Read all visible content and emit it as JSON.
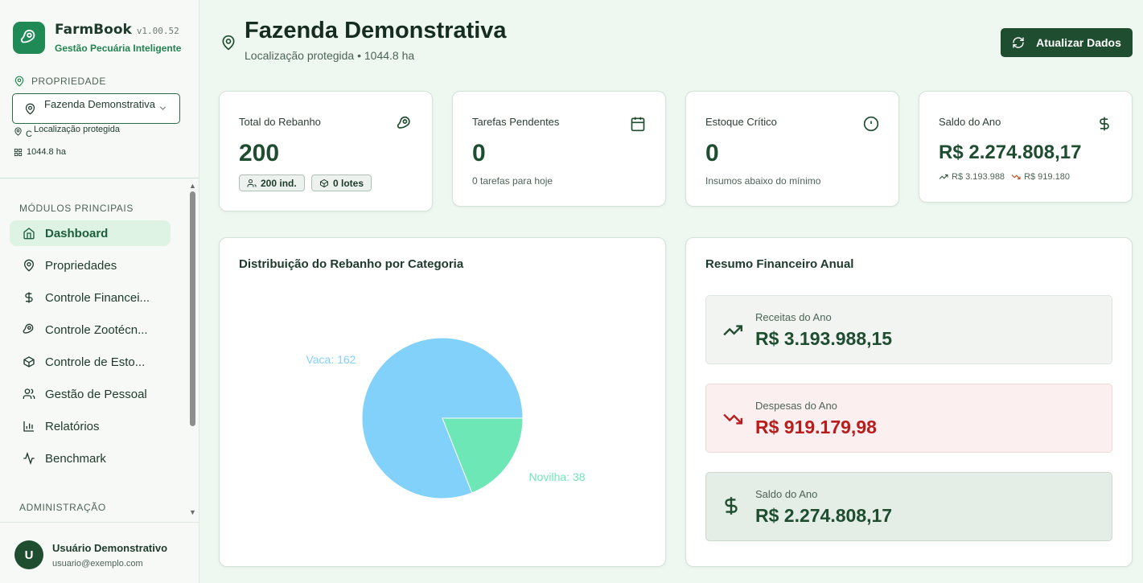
{
  "brand": {
    "name": "FarmBook",
    "version": "v1.00.52",
    "subtitle": "Gestão Pecuária Inteligente"
  },
  "property": {
    "section_label": "PROPRIEDADE",
    "selected": "Fazenda Demonstrativa",
    "location_prefix": "C",
    "location": "Localização protegida",
    "area": "1044.8 ha"
  },
  "nav": {
    "main_label": "MÓDULOS PRINCIPAIS",
    "items": [
      {
        "label": "Dashboard",
        "icon": "home-icon",
        "active": true
      },
      {
        "label": "Propriedades",
        "icon": "map-pin-icon"
      },
      {
        "label": "Controle Financei...",
        "icon": "dollar-icon"
      },
      {
        "label": "Controle Zootécn...",
        "icon": "beef-icon"
      },
      {
        "label": "Controle de Esto...",
        "icon": "package-icon"
      },
      {
        "label": "Gestão de Pessoal",
        "icon": "users-icon"
      },
      {
        "label": "Relatórios",
        "icon": "bar-chart-icon"
      },
      {
        "label": "Benchmark",
        "icon": "activity-icon"
      }
    ],
    "admin_label": "ADMINISTRAÇÃO"
  },
  "user": {
    "initial": "U",
    "name": "Usuário Demonstrativo",
    "email": "usuario@exemplo.com"
  },
  "header": {
    "title": "Fazenda Demonstrativa",
    "subtitle": "Localização protegida • 1044.8 ha",
    "refresh_label": "Atualizar Dados"
  },
  "cards": {
    "herd": {
      "title": "Total do Rebanho",
      "value": "200",
      "individuals": "200 ind.",
      "lots": "0 lotes"
    },
    "tasks": {
      "title": "Tarefas Pendentes",
      "value": "0",
      "note": "0 tarefas para hoje"
    },
    "stock": {
      "title": "Estoque Crítico",
      "value": "0",
      "note": "Insumos abaixo do mínimo"
    },
    "balance": {
      "title": "Saldo do Ano",
      "value": "R$ 2.274.808,17",
      "income": "R$ 3.193.988",
      "expense": "R$ 919.180"
    }
  },
  "chart_panel": {
    "title": "Distribuição do Rebanho por Categoria"
  },
  "chart_data": {
    "type": "pie",
    "title": "Distribuição do Rebanho por Categoria",
    "slices": [
      {
        "label": "Vaca: 162",
        "value": 162,
        "color": "#82d1fb"
      },
      {
        "label": "Novilha: 38",
        "value": 38,
        "color": "#6ee7b7"
      }
    ]
  },
  "finance": {
    "title": "Resumo Financeiro Anual",
    "income_label": "Receitas do Ano",
    "income_value": "R$ 3.193.988,15",
    "expense_label": "Despesas do Ano",
    "expense_value": "R$ 919.179,98",
    "balance_label": "Saldo do Ano",
    "balance_value": "R$ 2.274.808,17"
  },
  "colors": {
    "primary": "#1f4d30",
    "accent": "#1f8a55",
    "expense": "#b91c1c"
  }
}
